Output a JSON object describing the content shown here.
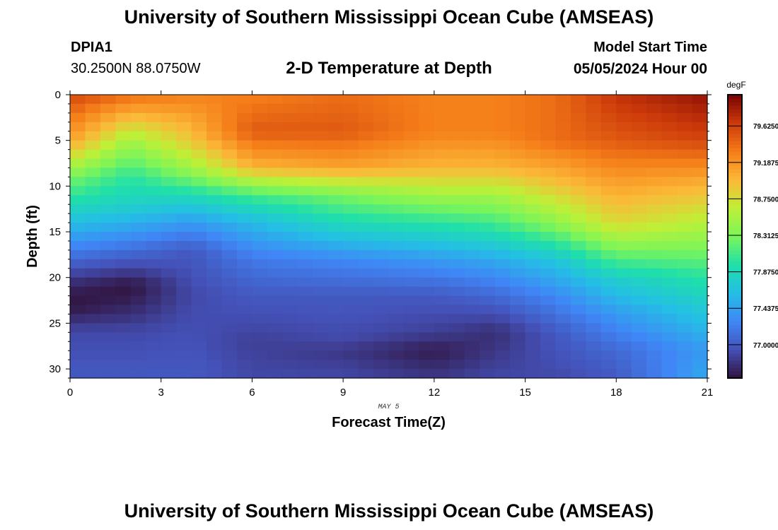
{
  "header": {
    "title": "University of Southern Mississippi Ocean Cube (AMSEAS)",
    "station_name": "DPIA1",
    "station_coords": "30.2500N  88.0750W",
    "subtitle": "2-D Temperature at Depth",
    "start_label": "Model Start Time",
    "start_value": "05/05/2024 Hour 00"
  },
  "footer": {
    "title": "University of Southern Mississippi Ocean Cube (AMSEAS)"
  },
  "chart_data": {
    "type": "heatmap",
    "title": "2-D Temperature at Depth",
    "xlabel": "Forecast Time(Z)",
    "ylabel": "Depth (ft)",
    "x_date_label": "MAY 5",
    "xlim": [
      0,
      21
    ],
    "ylim": [
      0,
      31
    ],
    "x_ticks": [
      0,
      3,
      6,
      9,
      12,
      15,
      18,
      21
    ],
    "y_ticks": [
      0,
      5,
      10,
      15,
      20,
      25,
      30
    ],
    "colorbar": {
      "unit": "degF",
      "range": [
        76.6,
        80.0
      ],
      "ticks": [
        "79.6250",
        "79.1875",
        "78.7500",
        "78.3125",
        "77.8750",
        "77.4375",
        "77.0000"
      ],
      "tick_values": [
        79.625,
        79.1875,
        78.75,
        78.3125,
        77.875,
        77.4375,
        77.0
      ]
    },
    "grid": {
      "x_step": 0.5,
      "depth_step": 1
    },
    "key_points": [
      {
        "time": 0,
        "profile": [
          [
            0,
            79.6
          ],
          [
            5,
            79.1
          ],
          [
            9,
            78.3
          ],
          [
            12,
            77.9
          ],
          [
            15,
            77.5
          ],
          [
            18,
            77.1
          ],
          [
            21,
            76.7
          ],
          [
            23,
            76.6
          ],
          [
            26,
            76.9
          ],
          [
            31,
            77.0
          ]
        ]
      },
      {
        "time": 2,
        "profile": [
          [
            0,
            79.4
          ],
          [
            5,
            78.5
          ],
          [
            9,
            78.0
          ],
          [
            12,
            77.8
          ],
          [
            15,
            77.4
          ],
          [
            18,
            77.0
          ],
          [
            21,
            76.6
          ],
          [
            23,
            76.7
          ],
          [
            26,
            76.9
          ],
          [
            31,
            77.0
          ]
        ]
      },
      {
        "time": 4,
        "profile": [
          [
            0,
            79.3
          ],
          [
            5,
            78.9
          ],
          [
            8,
            78.5
          ],
          [
            11,
            77.9
          ],
          [
            14,
            77.4
          ],
          [
            17,
            77.0
          ],
          [
            22,
            76.9
          ],
          [
            27,
            76.95
          ],
          [
            31,
            77.0
          ]
        ]
      },
      {
        "time": 6,
        "profile": [
          [
            0,
            79.3
          ],
          [
            4,
            79.5
          ],
          [
            8,
            79.0
          ],
          [
            11,
            78.1
          ],
          [
            14,
            77.6
          ],
          [
            18,
            77.2
          ],
          [
            22,
            77.0
          ],
          [
            27,
            76.85
          ],
          [
            31,
            76.9
          ]
        ]
      },
      {
        "time": 9,
        "profile": [
          [
            0,
            79.4
          ],
          [
            4,
            79.5
          ],
          [
            8,
            79.1
          ],
          [
            11,
            78.3
          ],
          [
            14,
            77.9
          ],
          [
            18,
            77.3
          ],
          [
            22,
            77.0
          ],
          [
            27,
            76.9
          ],
          [
            28,
            76.8
          ],
          [
            31,
            76.9
          ]
        ]
      },
      {
        "time": 12,
        "profile": [
          [
            0,
            79.3
          ],
          [
            4,
            79.3
          ],
          [
            8,
            79.0
          ],
          [
            11,
            78.5
          ],
          [
            14,
            78.0
          ],
          [
            18,
            77.4
          ],
          [
            22,
            77.0
          ],
          [
            26,
            76.85
          ],
          [
            28,
            76.65
          ],
          [
            31,
            76.8
          ]
        ]
      },
      {
        "time": 14,
        "profile": [
          [
            0,
            79.3
          ],
          [
            4,
            79.3
          ],
          [
            8,
            79.0
          ],
          [
            11,
            78.5
          ],
          [
            14,
            78.1
          ],
          [
            18,
            77.5
          ],
          [
            22,
            77.1
          ],
          [
            26,
            76.75
          ],
          [
            28,
            76.8
          ],
          [
            31,
            76.9
          ]
        ]
      },
      {
        "time": 16,
        "profile": [
          [
            0,
            79.4
          ],
          [
            5,
            79.4
          ],
          [
            10,
            78.9
          ],
          [
            14,
            78.4
          ],
          [
            18,
            77.7
          ],
          [
            22,
            77.3
          ],
          [
            26,
            77.0
          ],
          [
            31,
            76.9
          ]
        ]
      },
      {
        "time": 18,
        "profile": [
          [
            0,
            79.7
          ],
          [
            5,
            79.5
          ],
          [
            10,
            79.1
          ],
          [
            14,
            78.8
          ],
          [
            17,
            78.3
          ],
          [
            20,
            77.8
          ],
          [
            24,
            77.4
          ],
          [
            28,
            77.1
          ],
          [
            31,
            77.0
          ]
        ]
      },
      {
        "time": 21,
        "profile": [
          [
            0,
            79.9
          ],
          [
            5,
            79.6
          ],
          [
            10,
            79.0
          ],
          [
            14,
            78.6
          ],
          [
            17,
            78.3
          ],
          [
            20,
            78.0
          ],
          [
            24,
            77.7
          ],
          [
            28,
            77.4
          ],
          [
            31,
            77.5
          ]
        ]
      }
    ]
  }
}
